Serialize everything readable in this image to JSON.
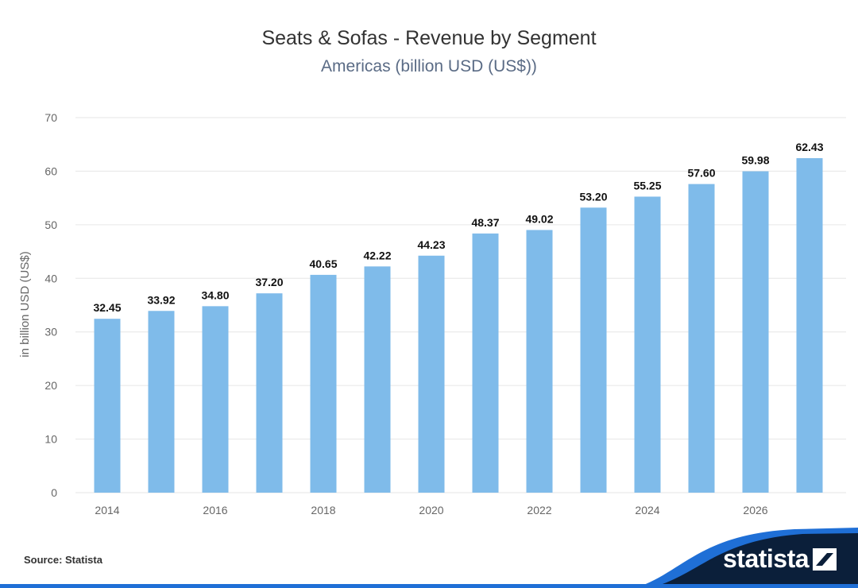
{
  "header": {
    "title": "Seats & Sofas - Revenue by Segment",
    "subtitle": "Americas (billion USD (US$))"
  },
  "footer": {
    "source": "Source: Statista",
    "brand": "statista"
  },
  "colors": {
    "bar": "#7fbbea",
    "grid": "#e6e6e6",
    "axis_text": "#666666",
    "label_text": "#111111",
    "brand_dark": "#0b1f3a",
    "brand_blue": "#1f6fd6"
  },
  "chart_data": {
    "type": "bar",
    "categories": [
      "2014",
      "2015",
      "2016",
      "2017",
      "2018",
      "2019",
      "2020",
      "2021",
      "2022",
      "2023",
      "2024",
      "2025",
      "2026",
      "2027"
    ],
    "x_tick_labels": [
      "2014",
      "",
      "2016",
      "",
      "2018",
      "",
      "2020",
      "",
      "2022",
      "",
      "2024",
      "",
      "2026",
      ""
    ],
    "series": [
      {
        "values": [
          32.45,
          33.92,
          34.8,
          37.2,
          40.65,
          42.22,
          44.23,
          48.37,
          49.02,
          53.2,
          55.25,
          57.6,
          59.98,
          62.43
        ]
      }
    ],
    "data_labels": [
      "32.45",
      "33.92",
      "34.80",
      "37.20",
      "40.65",
      "42.22",
      "44.23",
      "48.37",
      "49.02",
      "53.20",
      "55.25",
      "57.60",
      "59.98",
      "62.43"
    ],
    "xlabel": "",
    "ylabel": "in billion USD (US$)",
    "ylim": [
      0,
      70
    ],
    "yticks": [
      0,
      10,
      20,
      30,
      40,
      50,
      60,
      70
    ],
    "grid": true,
    "legend": "none"
  }
}
